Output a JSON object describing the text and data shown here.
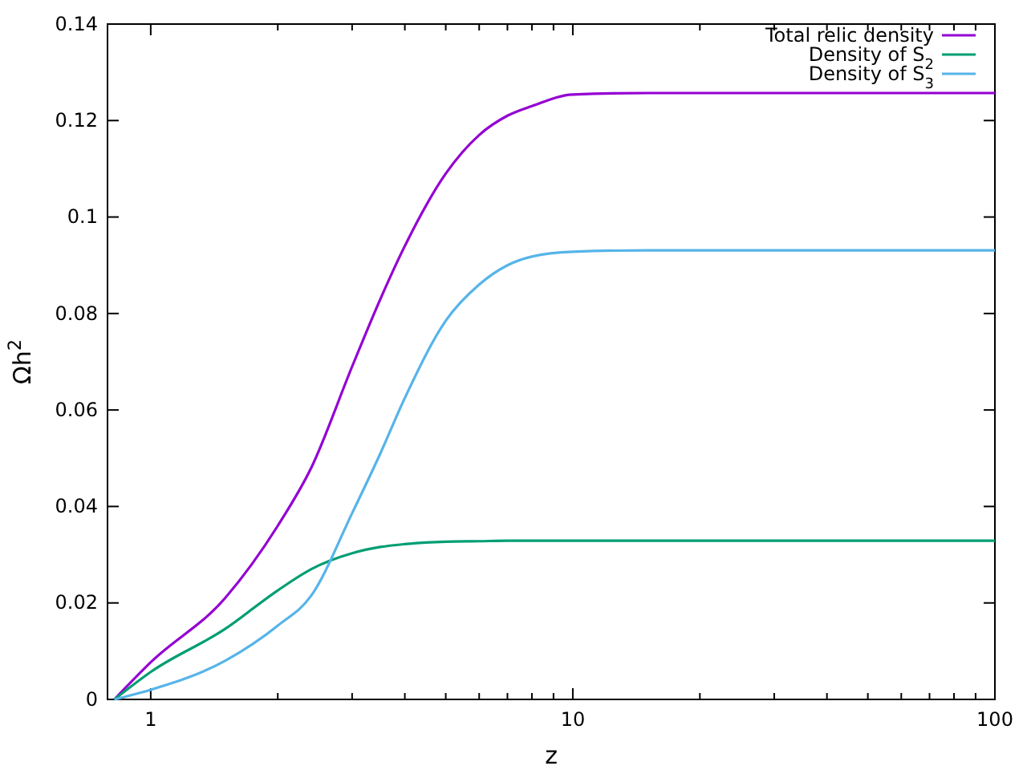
{
  "chart_data": {
    "type": "line",
    "xlabel": "z",
    "ylabel": "Ωh$^{2}$",
    "log": "x",
    "xlim": [
      0.79,
      100
    ],
    "ylim": [
      0,
      0.14
    ],
    "xticks": [
      1,
      {
        "value": 2,
        "label": null
      },
      {
        "value": 3,
        "label": null
      },
      {
        "value": 4,
        "label": null
      },
      {
        "value": 5,
        "label": null
      },
      {
        "value": 6,
        "label": null
      },
      {
        "value": 7,
        "label": null
      },
      {
        "value": 8,
        "label": null
      },
      {
        "value": 9,
        "label": null
      },
      10,
      {
        "value": 20,
        "label": null
      },
      {
        "value": 30,
        "label": null
      },
      {
        "value": 40,
        "label": null
      },
      {
        "value": 50,
        "label": null
      },
      {
        "value": 60,
        "label": null
      },
      {
        "value": 70,
        "label": null
      },
      {
        "value": 80,
        "label": null
      },
      {
        "value": 90,
        "label": null
      },
      100
    ],
    "yticks": [
      0,
      0.02,
      0.04,
      0.06,
      0.08,
      0.1,
      0.12,
      0.14
    ],
    "grid": false,
    "legend": "top right",
    "marker": "none",
    "line_style": "solid",
    "x": [
      0.82,
      1,
      1.5,
      2,
      2.4,
      3,
      3.5,
      4,
      5,
      6,
      7,
      8,
      10,
      15,
      30,
      100
    ],
    "series": [
      {
        "name": "Total relic density",
        "color": "#9400d3",
        "values": [
          0,
          0.0077,
          0.021,
          0.036,
          0.048,
          0.069,
          0.083,
          0.094,
          0.109,
          0.117,
          0.121,
          0.123,
          0.1254,
          0.1257,
          0.1257,
          0.1257
        ]
      },
      {
        "name": "Density of S$_{2}$",
        "color": "#009e73",
        "values": [
          0,
          0.0057,
          0.0146,
          0.0226,
          0.027,
          0.0303,
          0.0316,
          0.0322,
          0.0327,
          0.0328,
          0.0329,
          0.0329,
          0.0329,
          0.0329,
          0.0329,
          0.0329
        ]
      },
      {
        "name": "Density of S$_{3}$",
        "color": "#56b4e9",
        "values": [
          0,
          0.002,
          0.008,
          0.0153,
          0.0215,
          0.0386,
          0.051,
          0.0625,
          0.0785,
          0.086,
          0.09,
          0.0918,
          0.0928,
          0.0931,
          0.0931,
          0.0931
        ]
      }
    ]
  }
}
